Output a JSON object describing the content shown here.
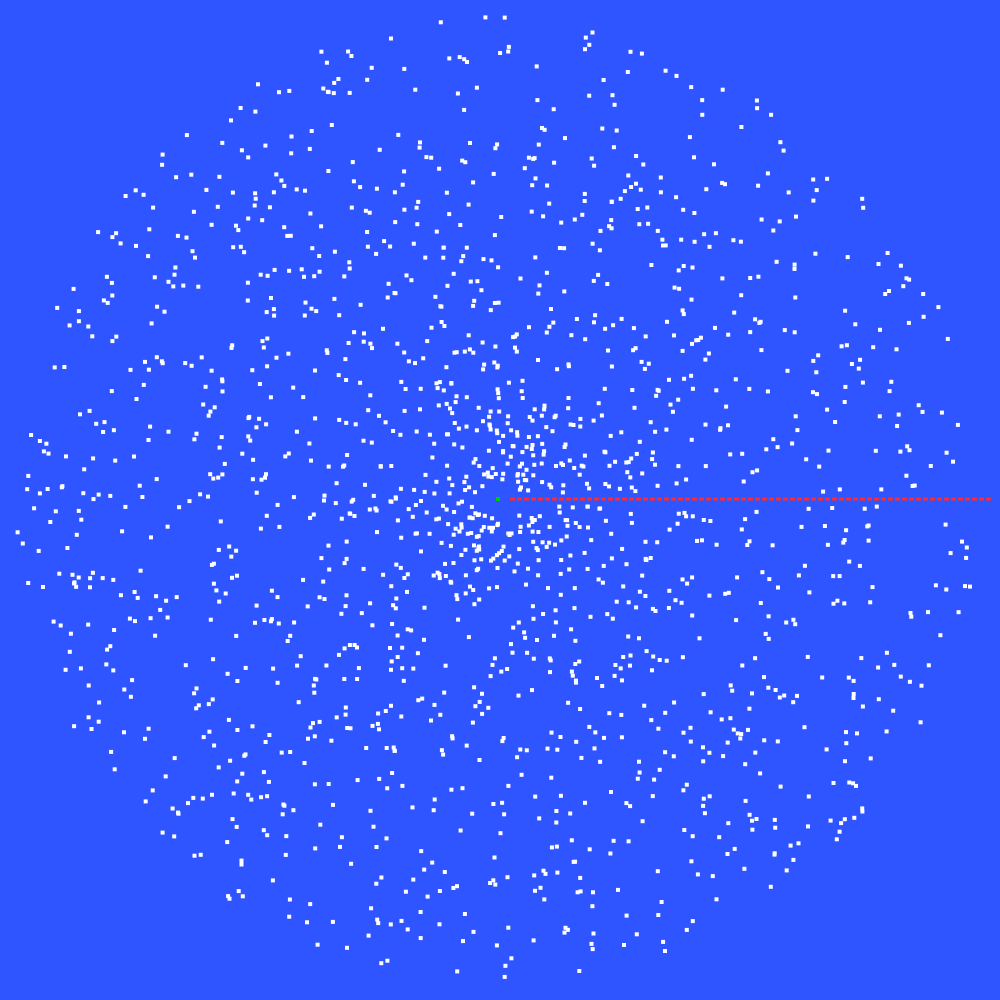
{
  "scene": {
    "background_color": "#2e55ff",
    "dot_color": "#ffffff",
    "ray_color": "#ff2a2a",
    "center_marker_color": "#00c800",
    "description_hidden": ""
  }
}
